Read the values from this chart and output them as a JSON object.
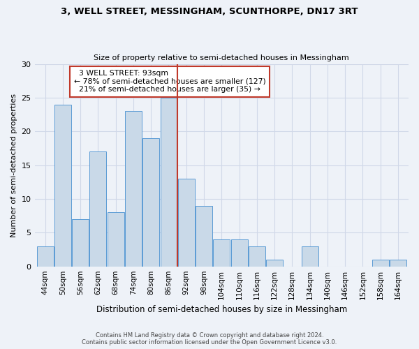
{
  "title": "3, WELL STREET, MESSINGHAM, SCUNTHORPE, DN17 3RT",
  "subtitle": "Size of property relative to semi-detached houses in Messingham",
  "xlabel": "Distribution of semi-detached houses by size in Messingham",
  "ylabel": "Number of semi-detached properties",
  "footer_line1": "Contains HM Land Registry data © Crown copyright and database right 2024.",
  "footer_line2": "Contains public sector information licensed under the Open Government Licence v3.0.",
  "categories": [
    "44sqm",
    "50sqm",
    "56sqm",
    "62sqm",
    "68sqm",
    "74sqm",
    "80sqm",
    "86sqm",
    "92sqm",
    "98sqm",
    "104sqm",
    "110sqm",
    "116sqm",
    "122sqm",
    "128sqm",
    "134sqm",
    "140sqm",
    "146sqm",
    "152sqm",
    "158sqm",
    "164sqm"
  ],
  "values": [
    3,
    24,
    7,
    17,
    8,
    23,
    19,
    25,
    13,
    9,
    4,
    4,
    3,
    1,
    0,
    3,
    0,
    0,
    0,
    1,
    1
  ],
  "bar_color": "#c9d9e8",
  "bar_edge_color": "#5b9bd5",
  "property_label": "3 WELL STREET: 93sqm",
  "pct_smaller": 78,
  "pct_larger": 21,
  "count_smaller": 127,
  "count_larger": 35,
  "vline_color": "#c0392b",
  "annotation_box_color": "#c0392b",
  "ylim": [
    0,
    30
  ],
  "yticks": [
    0,
    5,
    10,
    15,
    20,
    25,
    30
  ],
  "grid_color": "#d0d8e8",
  "bg_color": "#eef2f8",
  "vline_x_index": 8
}
